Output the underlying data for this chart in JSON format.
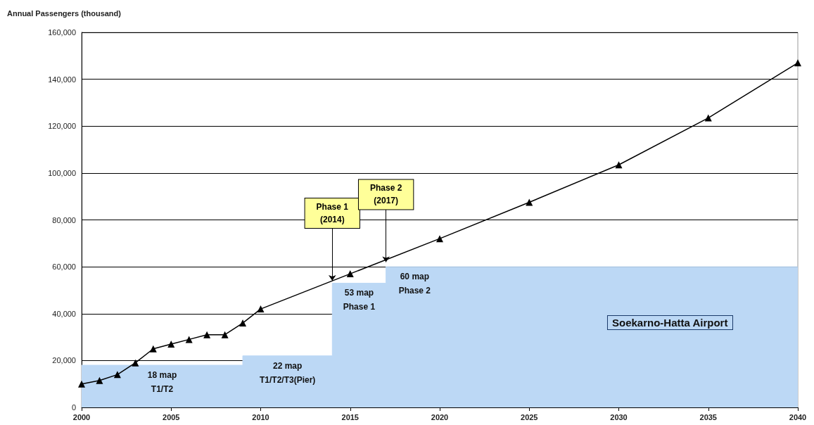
{
  "chart_data": {
    "type": "line",
    "ylabel": "Annual Passengers (thousand)",
    "series": [
      {
        "type": "area",
        "marker": "none",
        "color": "#bcd8f5",
        "x": [
          2000,
          2009,
          2009,
          2014,
          2014,
          2017,
          2017,
          2040
        ],
        "values": [
          18000,
          18000,
          22000,
          22000,
          53000,
          53000,
          60000,
          60000
        ]
      },
      {
        "marker": "triangle",
        "color": "#000000",
        "x": [
          2000,
          2001,
          2002,
          2003,
          2004,
          2005,
          2006,
          2007,
          2008,
          2009,
          2010,
          2015,
          2020,
          2025,
          2030,
          2035,
          2040
        ],
        "values": [
          10000,
          11500,
          14000,
          19000,
          25000,
          27000,
          29000,
          31000,
          31000,
          36000,
          42000,
          57000,
          72000,
          87500,
          103500,
          123500,
          147000
        ]
      }
    ],
    "xlim": [
      2000,
      2040
    ],
    "xticks": [
      2000,
      2005,
      2010,
      2015,
      2020,
      2025,
      2030,
      2035,
      2040
    ],
    "ylim": [
      0,
      160000
    ],
    "yticks": [
      0,
      {
        "value": 20000,
        "label": "20,000"
      },
      {
        "value": 40000,
        "label": "40,000"
      },
      {
        "value": 60000,
        "label": "60,000"
      },
      {
        "value": 80000,
        "label": "80,000"
      },
      {
        "value": 100000,
        "label": "100,000"
      },
      {
        "value": 120000,
        "label": "120,000"
      },
      {
        "value": 140000,
        "label": "140,000"
      },
      {
        "value": 160000,
        "label": "160,000"
      }
    ],
    "grid": "y",
    "line_style": "solid",
    "annotations": [
      {
        "text": "Phase 1\n(2014)",
        "x": 2014,
        "y": 54000
      },
      {
        "text": "Phase 2\n(2017)",
        "x": 2017,
        "y": 62000
      },
      {
        "text": "18 map\nT1/T2",
        "x": 2004.5,
        "y": 18000
      },
      {
        "text": "22 map\nT1/T2/T3(Pier)",
        "x": 2011.5,
        "y": 22000
      },
      {
        "text": "53 map\nPhase 1",
        "x": 2015.5,
        "y": 53000
      },
      {
        "text": "60 map\nPhase 2",
        "x": 2018.6,
        "y": 60000
      },
      "Soekarno-Hatta Airport"
    ]
  }
}
